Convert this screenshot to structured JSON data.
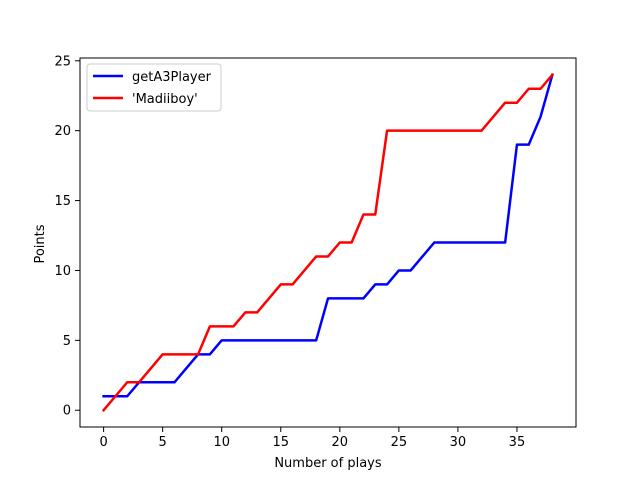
{
  "chart_data": {
    "type": "line",
    "title": "",
    "xlabel": "Number of plays",
    "ylabel": "Points",
    "xlim": [
      -2,
      40
    ],
    "ylim": [
      -1.2,
      25.2
    ],
    "xticks": [
      0,
      5,
      10,
      15,
      20,
      25,
      30,
      35
    ],
    "yticks": [
      0,
      5,
      10,
      15,
      20,
      25
    ],
    "grid": false,
    "legend_position": "top-left",
    "x": [
      0,
      1,
      2,
      3,
      4,
      5,
      6,
      7,
      8,
      9,
      10,
      11,
      12,
      13,
      14,
      15,
      16,
      17,
      18,
      19,
      20,
      21,
      22,
      23,
      24,
      25,
      26,
      27,
      28,
      29,
      30,
      31,
      32,
      33,
      34,
      35,
      36,
      37,
      38
    ],
    "series": [
      {
        "name": "getA3Player",
        "color": "#0000ff",
        "values": [
          1,
          1,
          1,
          2,
          2,
          2,
          2,
          3,
          4,
          4,
          5,
          5,
          5,
          5,
          5,
          5,
          5,
          5,
          5,
          8,
          8,
          8,
          8,
          9,
          9,
          10,
          10,
          11,
          12,
          12,
          12,
          12,
          12,
          12,
          12,
          19,
          19,
          21,
          24
        ]
      },
      {
        "name": "'Madiiboy'",
        "color": "#ff0000",
        "values": [
          0,
          1,
          2,
          2,
          3,
          4,
          4,
          4,
          4,
          6,
          6,
          6,
          7,
          7,
          8,
          9,
          9,
          10,
          11,
          11,
          12,
          12,
          14,
          14,
          20,
          20,
          20,
          20,
          20,
          20,
          20,
          20,
          20,
          21,
          22,
          22,
          23,
          23,
          24
        ]
      }
    ]
  }
}
